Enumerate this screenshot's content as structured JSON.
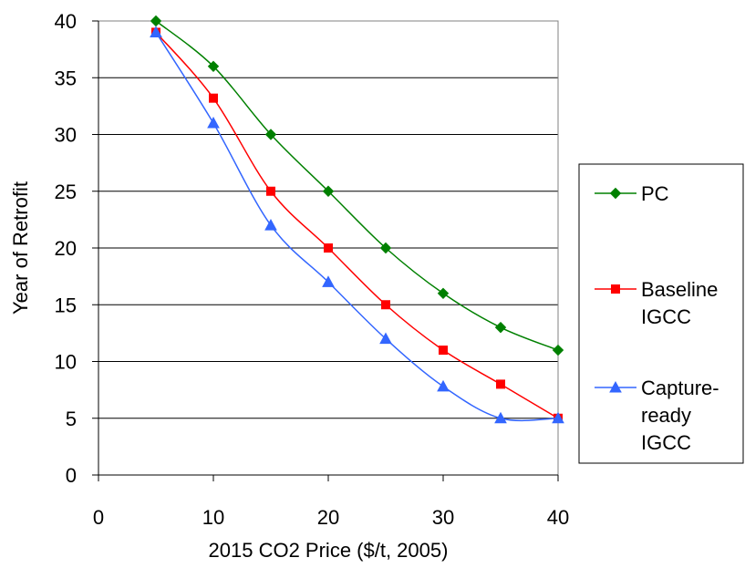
{
  "chart_data": {
    "type": "line",
    "title": "",
    "xlabel": "2015 CO2 Price ($/t, 2005)",
    "ylabel": "Year of Retrofit",
    "xlim": [
      0,
      40
    ],
    "ylim": [
      0,
      40
    ],
    "xticks": [
      0,
      10,
      20,
      30,
      40
    ],
    "yticks": [
      0,
      5,
      10,
      15,
      20,
      25,
      30,
      35,
      40
    ],
    "grid": "horizontal",
    "legend_position": "right",
    "x": [
      5,
      10,
      15,
      20,
      25,
      30,
      35,
      40
    ],
    "series": [
      {
        "name": "PC",
        "legend_lines": [
          "PC"
        ],
        "color": "#008000",
        "marker": "diamond",
        "values": [
          40,
          36,
          30,
          25,
          20,
          16,
          13,
          11
        ]
      },
      {
        "name": "Baseline IGCC",
        "legend_lines": [
          "Baseline",
          "IGCC"
        ],
        "color": "#ff0000",
        "marker": "square",
        "values": [
          39,
          33.2,
          25,
          20,
          15,
          11,
          8,
          5
        ]
      },
      {
        "name": "Capture-ready IGCC",
        "legend_lines": [
          "Capture-",
          "ready",
          "IGCC"
        ],
        "color": "#3366ff",
        "marker": "triangle",
        "values": [
          39,
          31,
          22,
          17,
          12,
          7.8,
          5,
          5
        ]
      }
    ]
  }
}
